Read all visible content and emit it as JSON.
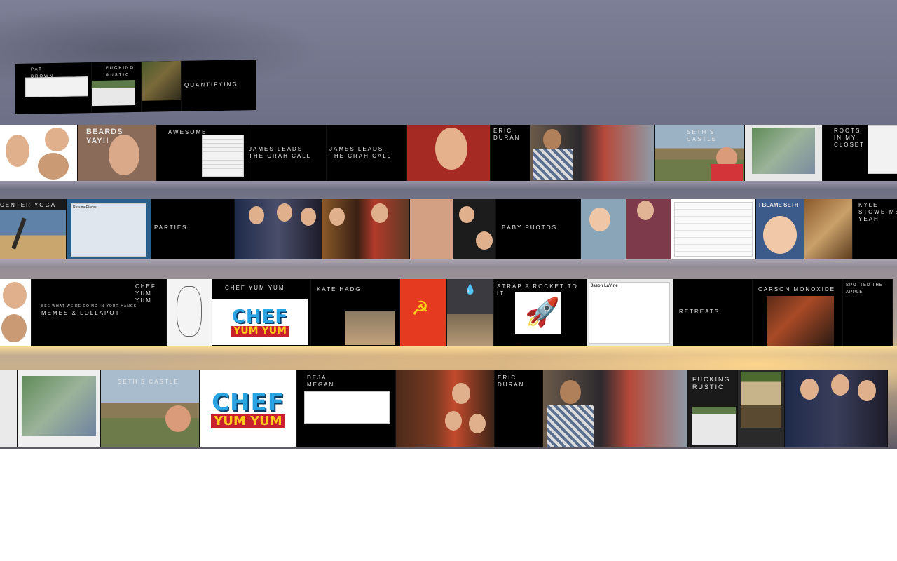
{
  "scene": {
    "sky_top": "#7d7f96",
    "sky_glow": "#ffd68c",
    "ground": "#ffffff"
  },
  "row0": {
    "caption_a": "PAT\nBROWN",
    "caption_b": "FUCKING\nRUSTIC",
    "caption_c": "QUANTIFYING"
  },
  "row1": {
    "beards": "BEARDS\nYAY!!",
    "awesome": "AWESOME",
    "james_a": "JAMES LEADS\nTHE CRAH CALL",
    "james_b": "JAMES LEADS\nTHE CRAH CALL",
    "eric": "ERIC\nDURAN",
    "castle": "SETH'S CASTLE",
    "closet": "ROOTS\nIN MY\nCLOSET"
  },
  "row2": {
    "center": "CENTER YOGA",
    "tweet": "ResumePlaces",
    "parties": "PARTIES",
    "baby": "BABY PHOTOS",
    "blame": "I BLAME SETH",
    "stowe": "KYLE\nSTOWE-MEGAN\nYEAH"
  },
  "row3": {
    "chef_title": "CHEF\nYUM\nYUM",
    "memes_small": "SEE WHAT WE'RE DOING IN YOUR HANGS",
    "memes": "MEMES & LOLLAPOT",
    "chefyumyum": "CHEF YUM YUM",
    "kate": "KATE HADG",
    "rocket": "STRAP A ROCKET TO IT",
    "jason": "Jason LaVine",
    "retreats": "RETREATS",
    "carson": "CARSON MONOXIDE",
    "spotted": "SPOTTED THE\nAPPLE"
  },
  "row4": {
    "seths_castle": "SETH'S CASTLE",
    "deja": "DEJA\nMEGAN",
    "eric": "ERIC\nDURAN",
    "rustic": "FUCKING\nRUSTIC"
  },
  "logos": {
    "chef_line1": "CHEF",
    "chef_line2": "YUM YUM"
  },
  "colors": {
    "tile_bg": "#000000",
    "chef_blue": "#2aa4e0",
    "chef_red": "#c8202f",
    "soviet_red": "#e53a1f",
    "map_green": "#5f8b57"
  }
}
